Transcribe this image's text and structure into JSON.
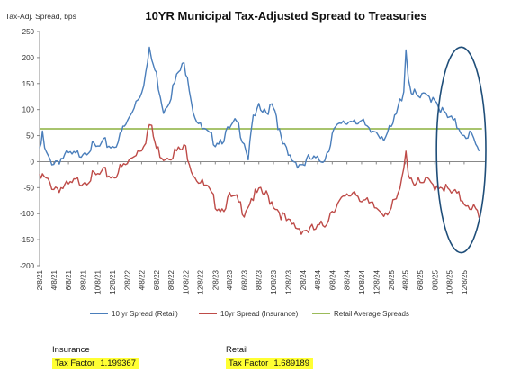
{
  "chart_data": {
    "type": "line",
    "title": "10YR Municipal Tax-Adjusted Spread to Treasuries",
    "ylabel": "Tax-Adj. Spread, bps",
    "xlabel": "",
    "ylim": [
      -200,
      250
    ],
    "yticks": [
      "250",
      "200",
      "150",
      "100",
      "50",
      "0",
      "-50",
      "-100",
      "-150",
      "-200"
    ],
    "xlim": [
      "2021-02-08",
      "2026-03-08"
    ],
    "xticks": [
      "2/8/21",
      "4/8/21",
      "6/8/21",
      "8/8/21",
      "10/8/21",
      "12/8/21",
      "2/8/22",
      "4/8/22",
      "6/8/22",
      "8/8/22",
      "10/8/22",
      "12/8/22",
      "2/8/23",
      "4/8/23",
      "6/8/23",
      "8/8/23",
      "10/8/23",
      "12/8/23",
      "2/8/24",
      "4/8/24",
      "6/8/24",
      "8/8/24",
      "10/8/24",
      "12/8/24",
      "2/8/25",
      "4/8/25",
      "6/8/25",
      "8/8/25",
      "10/8/25",
      "12/8/25"
    ],
    "legend_position": "bottom",
    "grid": false,
    "series": [
      {
        "name": "10 yr Spread (Retail)",
        "color": "#4a7ebb",
        "points": [
          [
            "2021-02-08",
            15
          ],
          [
            "2021-02-20",
            52
          ],
          [
            "2021-03-01",
            22
          ],
          [
            "2021-03-15",
            5
          ],
          [
            "2021-04-08",
            0
          ],
          [
            "2021-05-01",
            5
          ],
          [
            "2021-06-08",
            12
          ],
          [
            "2021-07-08",
            10
          ],
          [
            "2021-08-08",
            22
          ],
          [
            "2021-09-08",
            28
          ],
          [
            "2021-10-08",
            25
          ],
          [
            "2021-11-08",
            35
          ],
          [
            "2021-12-08",
            30
          ],
          [
            "2022-01-08",
            45
          ],
          [
            "2022-01-20",
            62
          ],
          [
            "2022-02-08",
            75
          ],
          [
            "2022-03-08",
            110
          ],
          [
            "2022-04-08",
            140
          ],
          [
            "2022-04-25",
            170
          ],
          [
            "2022-05-10",
            210
          ],
          [
            "2022-05-20",
            195
          ],
          [
            "2022-06-08",
            165
          ],
          [
            "2022-06-25",
            130
          ],
          [
            "2022-07-08",
            100
          ],
          [
            "2022-08-08",
            130
          ],
          [
            "2022-09-08",
            170
          ],
          [
            "2022-10-01",
            185
          ],
          [
            "2022-10-15",
            170
          ],
          [
            "2022-11-08",
            100
          ],
          [
            "2022-12-08",
            65
          ],
          [
            "2023-01-08",
            50
          ],
          [
            "2023-02-08",
            40
          ],
          [
            "2023-03-08",
            45
          ],
          [
            "2023-04-08",
            60
          ],
          [
            "2023-05-08",
            75
          ],
          [
            "2023-06-08",
            40
          ],
          [
            "2023-06-25",
            10
          ],
          [
            "2023-07-08",
            70
          ],
          [
            "2023-08-08",
            100
          ],
          [
            "2023-09-08",
            90
          ],
          [
            "2023-10-01",
            120
          ],
          [
            "2023-10-20",
            90
          ],
          [
            "2023-11-08",
            40
          ],
          [
            "2023-12-08",
            10
          ],
          [
            "2024-01-08",
            0
          ],
          [
            "2024-02-08",
            -5
          ],
          [
            "2024-03-08",
            5
          ],
          [
            "2024-04-08",
            0
          ],
          [
            "2024-05-08",
            10
          ],
          [
            "2024-05-25",
            25
          ],
          [
            "2024-06-08",
            60
          ],
          [
            "2024-07-08",
            65
          ],
          [
            "2024-08-08",
            75
          ],
          [
            "2024-09-08",
            85
          ],
          [
            "2024-10-08",
            75
          ],
          [
            "2024-11-08",
            55
          ],
          [
            "2024-12-08",
            60
          ],
          [
            "2025-01-08",
            50
          ],
          [
            "2025-02-08",
            60
          ],
          [
            "2025-03-08",
            100
          ],
          [
            "2025-04-01",
            140
          ],
          [
            "2025-04-10",
            222
          ],
          [
            "2025-04-20",
            160
          ],
          [
            "2025-05-08",
            130
          ],
          [
            "2025-06-08",
            120
          ],
          [
            "2025-07-08",
            125
          ],
          [
            "2025-08-08",
            125
          ],
          [
            "2025-09-08",
            95
          ],
          [
            "2025-10-08",
            80
          ],
          [
            "2025-11-08",
            70
          ],
          [
            "2025-12-08",
            55
          ],
          [
            "2026-01-08",
            50
          ],
          [
            "2026-01-25",
            25
          ],
          [
            "2026-02-08",
            20
          ]
        ]
      },
      {
        "name": "10yr Spread (Insurance)",
        "color": "#be4b48",
        "points": [
          [
            "2021-02-08",
            -35
          ],
          [
            "2021-02-20",
            -30
          ],
          [
            "2021-03-15",
            -40
          ],
          [
            "2021-04-08",
            -48
          ],
          [
            "2021-05-08",
            -50
          ],
          [
            "2021-06-08",
            -48
          ],
          [
            "2021-07-08",
            -40
          ],
          [
            "2021-08-08",
            -35
          ],
          [
            "2021-09-08",
            -30
          ],
          [
            "2021-10-08",
            -28
          ],
          [
            "2021-11-08",
            -22
          ],
          [
            "2021-12-08",
            -28
          ],
          [
            "2022-01-08",
            -15
          ],
          [
            "2022-02-08",
            -5
          ],
          [
            "2022-03-08",
            15
          ],
          [
            "2022-04-08",
            30
          ],
          [
            "2022-04-25",
            45
          ],
          [
            "2022-05-10",
            70
          ],
          [
            "2022-05-20",
            60
          ],
          [
            "2022-06-08",
            25
          ],
          [
            "2022-07-08",
            10
          ],
          [
            "2022-08-08",
            15
          ],
          [
            "2022-09-08",
            20
          ],
          [
            "2022-10-08",
            25
          ],
          [
            "2022-11-08",
            -20
          ],
          [
            "2022-12-08",
            -40
          ],
          [
            "2023-01-08",
            -55
          ],
          [
            "2023-02-08",
            -80
          ],
          [
            "2023-03-08",
            -90
          ],
          [
            "2023-04-08",
            -70
          ],
          [
            "2023-05-08",
            -75
          ],
          [
            "2023-06-08",
            -95
          ],
          [
            "2023-07-08",
            -70
          ],
          [
            "2023-08-08",
            -60
          ],
          [
            "2023-09-08",
            -65
          ],
          [
            "2023-10-08",
            -80
          ],
          [
            "2023-11-08",
            -100
          ],
          [
            "2023-12-08",
            -120
          ],
          [
            "2024-01-08",
            -125
          ],
          [
            "2024-02-08",
            -130
          ],
          [
            "2024-03-08",
            -132
          ],
          [
            "2024-04-08",
            -130
          ],
          [
            "2024-05-08",
            -120
          ],
          [
            "2024-06-08",
            -90
          ],
          [
            "2024-07-08",
            -80
          ],
          [
            "2024-08-08",
            -70
          ],
          [
            "2024-09-08",
            -55
          ],
          [
            "2024-10-08",
            -70
          ],
          [
            "2024-11-08",
            -85
          ],
          [
            "2024-12-08",
            -90
          ],
          [
            "2025-01-08",
            -95
          ],
          [
            "2025-02-08",
            -90
          ],
          [
            "2025-03-08",
            -70
          ],
          [
            "2025-04-01",
            -20
          ],
          [
            "2025-04-10",
            30
          ],
          [
            "2025-04-20",
            -20
          ],
          [
            "2025-05-08",
            -35
          ],
          [
            "2025-06-08",
            -45
          ],
          [
            "2025-07-08",
            -40
          ],
          [
            "2025-08-08",
            -45
          ],
          [
            "2025-09-08",
            -45
          ],
          [
            "2025-10-08",
            -60
          ],
          [
            "2025-11-08",
            -65
          ],
          [
            "2025-12-08",
            -75
          ],
          [
            "2026-01-08",
            -85
          ],
          [
            "2026-01-25",
            -95
          ],
          [
            "2026-02-08",
            -108
          ]
        ]
      },
      {
        "name": "Retail Average Spreads",
        "color": "#9bbb59",
        "points": [
          [
            "2021-02-08",
            63
          ],
          [
            "2026-02-20",
            63
          ]
        ]
      }
    ],
    "annotations": [
      {
        "type": "ellipse",
        "color": "#1f4e79",
        "range_x": [
          "2025-08-15",
          "2026-03-08"
        ],
        "range_y": [
          -175,
          220
        ]
      }
    ]
  },
  "factors": {
    "insurance": {
      "heading": "Insurance",
      "label": "Tax Factor",
      "value": "1.199367"
    },
    "retail": {
      "heading": "Retail",
      "label": "Tax Factor",
      "value": "1.689189"
    }
  }
}
